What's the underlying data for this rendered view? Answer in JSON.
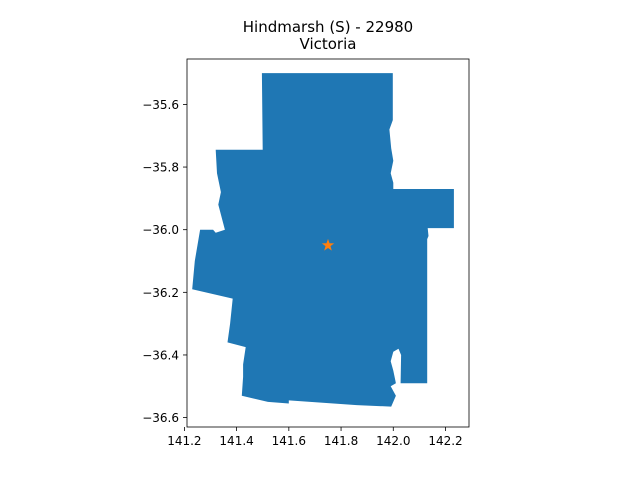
{
  "title": {
    "line1": "Hindmarsh (S) - 22980",
    "line2": "Victoria"
  },
  "map": {
    "region_color": "#1f77b4",
    "marker_color": "#ff7f0e",
    "marker_icon": "star-icon",
    "marker": {
      "lon": 141.75,
      "lat": -36.05
    },
    "x_range": [
      141.21,
      142.29
    ],
    "y_range": [
      -36.63,
      -35.455
    ],
    "x_ticks": [
      {
        "v": 141.2,
        "label": "141.2"
      },
      {
        "v": 141.4,
        "label": "141.4"
      },
      {
        "v": 141.6,
        "label": "141.6"
      },
      {
        "v": 141.8,
        "label": "141.8"
      },
      {
        "v": 142.0,
        "label": "142.0"
      },
      {
        "v": 142.2,
        "label": "142.2"
      }
    ],
    "y_ticks": [
      {
        "v": -35.6,
        "label": "−35.6"
      },
      {
        "v": -35.8,
        "label": "−35.8"
      },
      {
        "v": -36.0,
        "label": "−36.0"
      },
      {
        "v": -36.2,
        "label": "−36.2"
      },
      {
        "v": -36.4,
        "label": "−36.4"
      },
      {
        "v": -36.6,
        "label": "−36.6"
      }
    ],
    "boundary": [
      [
        141.497,
        -35.5
      ],
      [
        141.998,
        -35.5
      ],
      [
        141.998,
        -35.65
      ],
      [
        141.985,
        -35.68
      ],
      [
        141.992,
        -35.74
      ],
      [
        142.0,
        -35.78
      ],
      [
        141.99,
        -35.82
      ],
      [
        142.0,
        -35.85
      ],
      [
        142.0,
        -35.87
      ],
      [
        142.232,
        -35.87
      ],
      [
        142.232,
        -35.995
      ],
      [
        142.132,
        -35.995
      ],
      [
        142.135,
        -36.02
      ],
      [
        142.13,
        -36.03
      ],
      [
        142.13,
        -36.49
      ],
      [
        142.028,
        -36.49
      ],
      [
        142.03,
        -36.4
      ],
      [
        142.02,
        -36.38
      ],
      [
        142.0,
        -36.39
      ],
      [
        141.99,
        -36.42
      ],
      [
        142.0,
        -36.45
      ],
      [
        142.01,
        -36.49
      ],
      [
        141.99,
        -36.5
      ],
      [
        142.01,
        -36.53
      ],
      [
        141.992,
        -36.565
      ],
      [
        141.86,
        -36.56
      ],
      [
        141.6,
        -36.545
      ],
      [
        141.6,
        -36.555
      ],
      [
        141.52,
        -36.55
      ],
      [
        141.42,
        -36.53
      ],
      [
        141.425,
        -36.47
      ],
      [
        141.425,
        -36.43
      ],
      [
        141.435,
        -36.375
      ],
      [
        141.365,
        -36.36
      ],
      [
        141.375,
        -36.3
      ],
      [
        141.385,
        -36.22
      ],
      [
        141.23,
        -36.19
      ],
      [
        141.24,
        -36.1
      ],
      [
        141.26,
        -36.0
      ],
      [
        141.31,
        -36.0
      ],
      [
        141.32,
        -36.01
      ],
      [
        141.355,
        -36.0
      ],
      [
        141.33,
        -35.92
      ],
      [
        141.34,
        -35.88
      ],
      [
        141.325,
        -35.82
      ],
      [
        141.32,
        -35.745
      ],
      [
        141.5,
        -35.745
      ],
      [
        141.497,
        -35.5
      ]
    ]
  }
}
